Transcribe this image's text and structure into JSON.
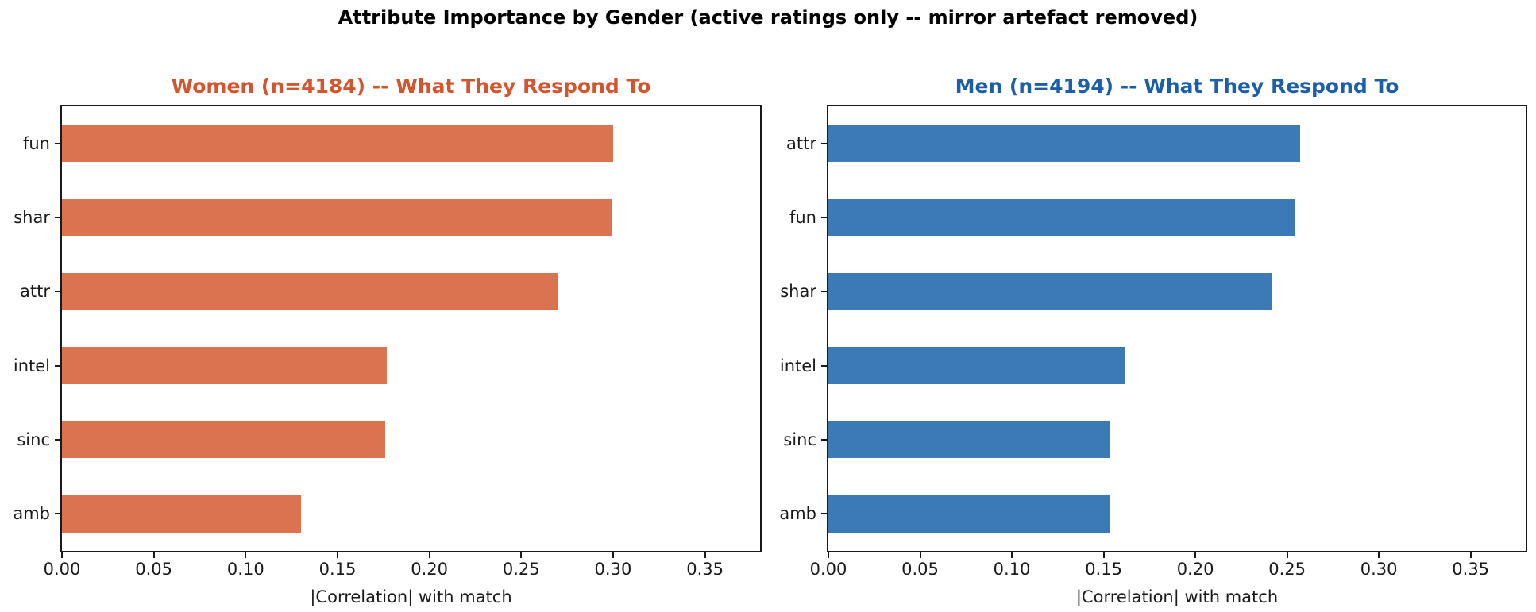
{
  "figure": {
    "title": "Attribute Importance by Gender (active ratings only -- mirror artefact removed)",
    "background_color": "#ffffff",
    "text_color": "#1a1a1a"
  },
  "chart_data": [
    {
      "type": "bar",
      "orientation": "horizontal",
      "title": "Women (n=4184) -- What They Respond To",
      "title_color": "#d4552d",
      "bar_color": "#dc7350",
      "categories": [
        "fun",
        "shar",
        "attr",
        "intel",
        "sinc",
        "amb"
      ],
      "values": [
        0.3,
        0.299,
        0.27,
        0.177,
        0.176,
        0.13
      ],
      "xlabel": "|Correlation| with match",
      "xlim": [
        0,
        0.38
      ],
      "xticks": [
        0.0,
        0.05,
        0.1,
        0.15,
        0.2,
        0.25,
        0.3,
        0.35
      ],
      "xtick_labels": [
        "0.00",
        "0.05",
        "0.10",
        "0.15",
        "0.20",
        "0.25",
        "0.30",
        "0.35"
      ],
      "grid": false,
      "legend": "none"
    },
    {
      "type": "bar",
      "orientation": "horizontal",
      "title": "Men (n=4194) -- What They Respond To",
      "title_color": "#1c5fa8",
      "bar_color": "#3b7ab5",
      "categories": [
        "attr",
        "fun",
        "shar",
        "intel",
        "sinc",
        "amb"
      ],
      "values": [
        0.257,
        0.254,
        0.242,
        0.162,
        0.153,
        0.153
      ],
      "xlabel": "|Correlation| with match",
      "xlim": [
        0,
        0.38
      ],
      "xticks": [
        0.0,
        0.05,
        0.1,
        0.15,
        0.2,
        0.25,
        0.3,
        0.35
      ],
      "xtick_labels": [
        "0.00",
        "0.05",
        "0.10",
        "0.15",
        "0.20",
        "0.25",
        "0.30",
        "0.35"
      ],
      "grid": false,
      "legend": "none"
    }
  ]
}
